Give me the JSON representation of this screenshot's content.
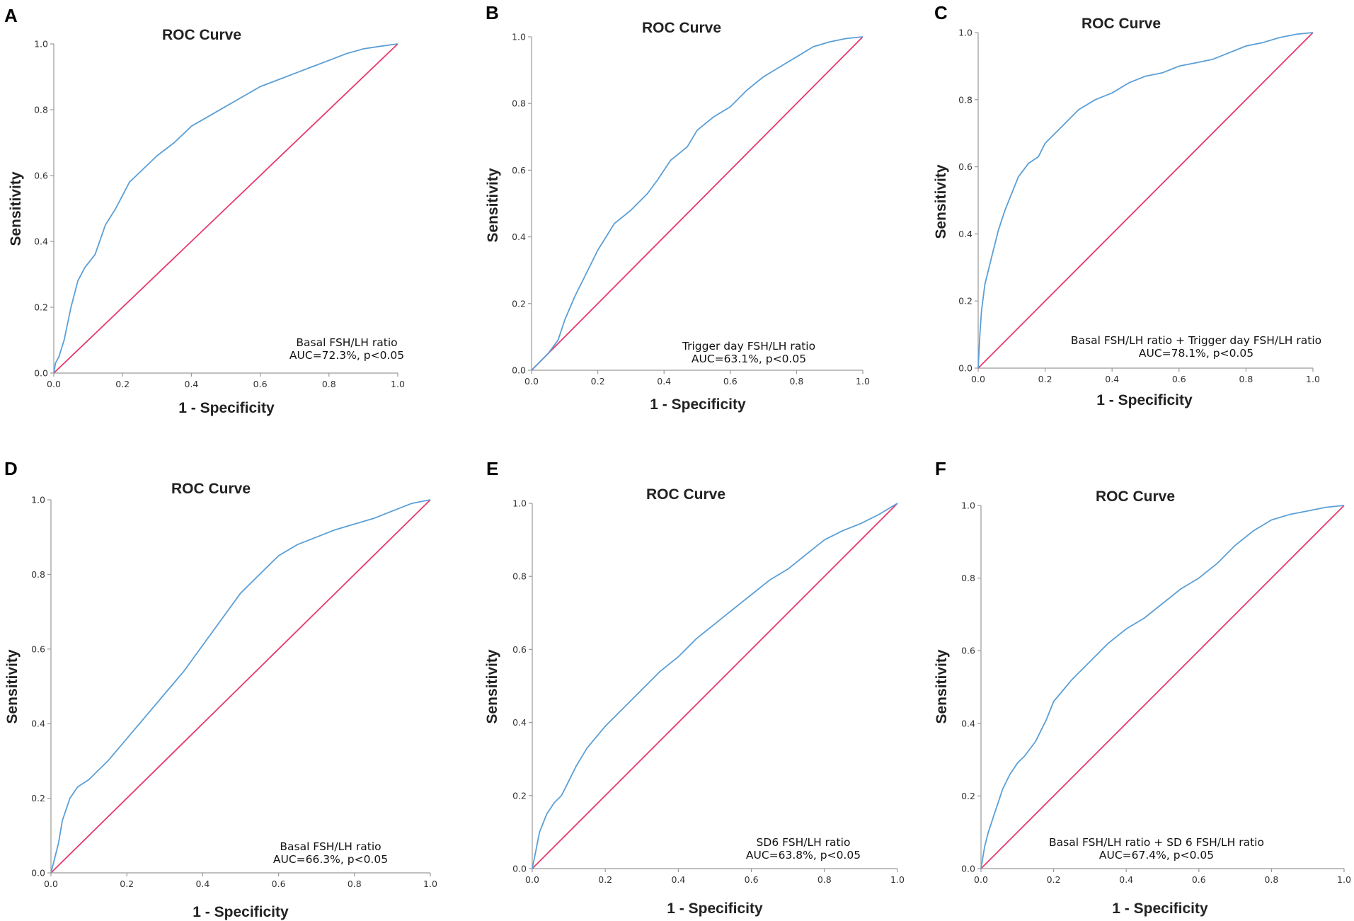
{
  "chart_data": [
    {
      "panel": "A",
      "type": "line",
      "title": "ROC Curve",
      "xlabel": "1 - Specificity",
      "ylabel": "Sensitivity",
      "xlim": [
        0,
        1
      ],
      "ylim": [
        0,
        1
      ],
      "xticks": [
        "0.0",
        "0.2",
        "0.4",
        "0.6",
        "0.8",
        "1.0"
      ],
      "yticks": [
        "0.0",
        "0.2",
        "0.4",
        "0.6",
        "0.8",
        "1.0"
      ],
      "annotation": [
        "Basal FSH/LH ratio",
        "AUC=72.3%, p<0.05"
      ],
      "series": [
        {
          "name": "ROC",
          "color": "#5b9fd6",
          "x": [
            0,
            0.005,
            0.015,
            0.03,
            0.05,
            0.07,
            0.09,
            0.12,
            0.15,
            0.18,
            0.2,
            0.22,
            0.25,
            0.3,
            0.35,
            0.4,
            0.45,
            0.5,
            0.55,
            0.6,
            0.65,
            0.7,
            0.75,
            0.8,
            0.85,
            0.9,
            0.95,
            1.0
          ],
          "y": [
            0,
            0.03,
            0.05,
            0.1,
            0.2,
            0.28,
            0.32,
            0.36,
            0.45,
            0.5,
            0.54,
            0.58,
            0.61,
            0.66,
            0.7,
            0.75,
            0.78,
            0.81,
            0.84,
            0.87,
            0.89,
            0.91,
            0.93,
            0.95,
            0.97,
            0.985,
            0.993,
            1.0
          ]
        },
        {
          "name": "Reference",
          "color": "#e8386b",
          "x": [
            0,
            1
          ],
          "y": [
            0,
            1
          ]
        }
      ]
    },
    {
      "panel": "B",
      "type": "line",
      "title": "ROC Curve",
      "xlabel": "1 - Specificity",
      "ylabel": "Sensitivity",
      "xlim": [
        0,
        1
      ],
      "ylim": [
        0,
        1
      ],
      "xticks": [
        "0.0",
        "0.2",
        "0.4",
        "0.6",
        "0.8",
        "1.0"
      ],
      "yticks": [
        "0.0",
        "0.2",
        "0.4",
        "0.6",
        "0.8",
        "1.0"
      ],
      "annotation": [
        "Trigger day FSH/LH ratio",
        "AUC=63.1%, p<0.05"
      ],
      "series": [
        {
          "name": "ROC",
          "color": "#5b9fd6",
          "x": [
            0,
            0.02,
            0.05,
            0.08,
            0.1,
            0.13,
            0.16,
            0.2,
            0.25,
            0.3,
            0.35,
            0.38,
            0.42,
            0.47,
            0.5,
            0.55,
            0.6,
            0.65,
            0.7,
            0.75,
            0.8,
            0.85,
            0.9,
            0.95,
            1.0
          ],
          "y": [
            0,
            0.02,
            0.05,
            0.09,
            0.15,
            0.22,
            0.28,
            0.36,
            0.44,
            0.48,
            0.53,
            0.57,
            0.63,
            0.67,
            0.72,
            0.76,
            0.79,
            0.84,
            0.88,
            0.91,
            0.94,
            0.97,
            0.985,
            0.995,
            1.0
          ]
        },
        {
          "name": "Reference",
          "color": "#e8386b",
          "x": [
            0,
            1
          ],
          "y": [
            0,
            1
          ]
        }
      ]
    },
    {
      "panel": "C",
      "type": "line",
      "title": "ROC Curve",
      "xlabel": "1 - Specificity",
      "ylabel": "Sensitivity",
      "xlim": [
        0,
        1
      ],
      "ylim": [
        0,
        1
      ],
      "xticks": [
        "0.0",
        "0.2",
        "0.4",
        "0.6",
        "0.8",
        "1.0"
      ],
      "yticks": [
        "0.0",
        "0.2",
        "0.4",
        "0.6",
        "0.8",
        "1.0"
      ],
      "annotation": [
        "Basal FSH/LH ratio + Trigger day FSH/LH ratio",
        "AUC=78.1%, p<0.05"
      ],
      "series": [
        {
          "name": "ROC",
          "color": "#5b9fd6",
          "x": [
            0,
            0.005,
            0.01,
            0.02,
            0.04,
            0.06,
            0.08,
            0.1,
            0.12,
            0.15,
            0.18,
            0.2,
            0.25,
            0.3,
            0.35,
            0.4,
            0.45,
            0.5,
            0.55,
            0.6,
            0.65,
            0.7,
            0.75,
            0.8,
            0.85,
            0.9,
            0.95,
            1.0
          ],
          "y": [
            0,
            0.1,
            0.17,
            0.25,
            0.33,
            0.41,
            0.47,
            0.52,
            0.57,
            0.61,
            0.63,
            0.67,
            0.72,
            0.77,
            0.8,
            0.82,
            0.85,
            0.87,
            0.88,
            0.9,
            0.91,
            0.92,
            0.94,
            0.96,
            0.97,
            0.985,
            0.995,
            1.0
          ]
        },
        {
          "name": "Reference",
          "color": "#e8386b",
          "x": [
            0,
            1
          ],
          "y": [
            0,
            1
          ]
        }
      ]
    },
    {
      "panel": "D",
      "type": "line",
      "title": "ROC Curve",
      "xlabel": "1 - Specificity",
      "ylabel": "Sensitivity",
      "xlim": [
        0,
        1
      ],
      "ylim": [
        0,
        1
      ],
      "xticks": [
        "0.0",
        "0.2",
        "0.4",
        "0.6",
        "0.8",
        "1.0"
      ],
      "yticks": [
        "0.0",
        "0.2",
        "0.4",
        "0.6",
        "0.8",
        "1.0"
      ],
      "annotation": [
        "Basal FSH/LH ratio",
        "AUC=66.3%, p<0.05"
      ],
      "series": [
        {
          "name": "ROC",
          "color": "#5b9fd6",
          "x": [
            0,
            0.01,
            0.02,
            0.03,
            0.05,
            0.07,
            0.1,
            0.15,
            0.2,
            0.25,
            0.3,
            0.35,
            0.4,
            0.45,
            0.5,
            0.55,
            0.6,
            0.65,
            0.7,
            0.75,
            0.8,
            0.85,
            0.9,
            0.95,
            1.0
          ],
          "y": [
            0,
            0.04,
            0.08,
            0.14,
            0.2,
            0.23,
            0.25,
            0.3,
            0.36,
            0.42,
            0.48,
            0.54,
            0.61,
            0.68,
            0.75,
            0.8,
            0.85,
            0.88,
            0.9,
            0.92,
            0.935,
            0.95,
            0.97,
            0.99,
            1.0
          ]
        },
        {
          "name": "Reference",
          "color": "#e8386b",
          "x": [
            0,
            1
          ],
          "y": [
            0,
            1
          ]
        }
      ]
    },
    {
      "panel": "E",
      "type": "line",
      "title": "ROC Curve",
      "xlabel": "1 - Specificity",
      "ylabel": "Sensitivity",
      "xlim": [
        0,
        1
      ],
      "ylim": [
        0,
        1
      ],
      "xticks": [
        "0.0",
        "0.2",
        "0.4",
        "0.6",
        "0.8",
        "1.0"
      ],
      "yticks": [
        "0.0",
        "0.2",
        "0.4",
        "0.6",
        "0.8",
        "1.0"
      ],
      "annotation": [
        "SD6 FSH/LH ratio",
        "AUC=63.8%, p<0.05"
      ],
      "series": [
        {
          "name": "ROC",
          "color": "#5b9fd6",
          "x": [
            0,
            0.01,
            0.02,
            0.04,
            0.06,
            0.08,
            0.1,
            0.12,
            0.15,
            0.2,
            0.25,
            0.3,
            0.35,
            0.4,
            0.45,
            0.5,
            0.55,
            0.6,
            0.65,
            0.7,
            0.75,
            0.8,
            0.85,
            0.9,
            0.95,
            1.0
          ],
          "y": [
            0,
            0.05,
            0.1,
            0.15,
            0.18,
            0.2,
            0.24,
            0.28,
            0.33,
            0.39,
            0.44,
            0.49,
            0.54,
            0.58,
            0.63,
            0.67,
            0.71,
            0.75,
            0.79,
            0.82,
            0.86,
            0.9,
            0.925,
            0.945,
            0.97,
            1.0
          ]
        },
        {
          "name": "Reference",
          "color": "#e8386b",
          "x": [
            0,
            1
          ],
          "y": [
            0,
            1
          ]
        }
      ]
    },
    {
      "panel": "F",
      "type": "line",
      "title": "ROC Curve",
      "xlabel": "1 - Specificity",
      "ylabel": "Sensitivity",
      "xlim": [
        0,
        1
      ],
      "ylim": [
        0,
        1
      ],
      "xticks": [
        "0.0",
        "0.2",
        "0.4",
        "0.6",
        "0.8",
        "1.0"
      ],
      "yticks": [
        "0.0",
        "0.2",
        "0.4",
        "0.6",
        "0.8",
        "1.0"
      ],
      "annotation": [
        "Basal FSH/LH ratio + SD 6 FSH/LH ratio",
        "AUC=67.4%, p<0.05"
      ],
      "series": [
        {
          "name": "ROC",
          "color": "#5b9fd6",
          "x": [
            0,
            0.01,
            0.02,
            0.04,
            0.06,
            0.08,
            0.1,
            0.12,
            0.15,
            0.18,
            0.2,
            0.25,
            0.3,
            0.35,
            0.4,
            0.45,
            0.5,
            0.55,
            0.6,
            0.65,
            0.7,
            0.75,
            0.8,
            0.85,
            0.9,
            0.95,
            1.0
          ],
          "y": [
            0,
            0.06,
            0.1,
            0.16,
            0.22,
            0.26,
            0.29,
            0.31,
            0.35,
            0.41,
            0.46,
            0.52,
            0.57,
            0.62,
            0.66,
            0.69,
            0.73,
            0.77,
            0.8,
            0.84,
            0.89,
            0.93,
            0.96,
            0.975,
            0.985,
            0.995,
            1.0
          ]
        },
        {
          "name": "Reference",
          "color": "#e8386b",
          "x": [
            0,
            1
          ],
          "y": [
            0,
            1
          ]
        }
      ]
    }
  ]
}
